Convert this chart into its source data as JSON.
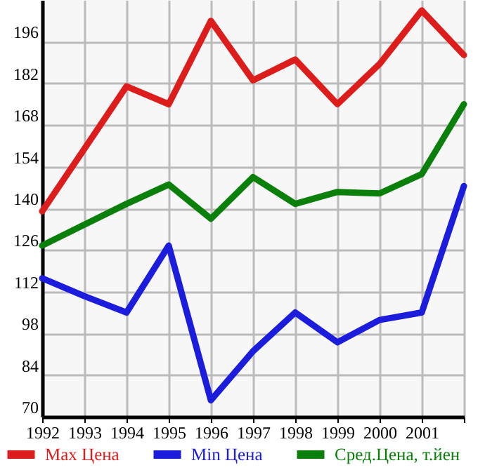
{
  "chart_data": {
    "type": "line",
    "x": [
      1992,
      1993,
      1994,
      1995,
      1996,
      1997,
      1998,
      1999,
      2000,
      2001,
      2002
    ],
    "series": [
      {
        "name": "Max Цена",
        "color": "#dd1c1c",
        "values": [
          139,
          160,
          181,
          175,
          203,
          183,
          190,
          175,
          188.5,
          206.5,
          191.5
        ]
      },
      {
        "name": "Min Цена",
        "color": "#1c1cdd",
        "values": [
          116.5,
          110.5,
          105,
          127.5,
          75.5,
          92,
          105,
          95,
          102.5,
          105,
          147.5
        ]
      },
      {
        "name": "Сред.Цена, т.йен",
        "color": "#0a800a",
        "values": [
          127.5,
          134.5,
          141.5,
          148,
          136.5,
          150.5,
          141.5,
          145.5,
          145,
          151.5,
          175
        ]
      }
    ],
    "xlim": [
      1992,
      2002
    ],
    "xticks": [
      1992,
      1993,
      1994,
      1995,
      1996,
      1997,
      1998,
      1999,
      2000,
      2001,
      {
        "value": 2002,
        "label": null
      }
    ],
    "ylim": [
      70,
      210
    ],
    "yticks": [
      70,
      84,
      98,
      112,
      126,
      140,
      154,
      168,
      182,
      196
    ],
    "grid": true,
    "legend": "bottom",
    "marker": "none",
    "line_style": "solid"
  }
}
